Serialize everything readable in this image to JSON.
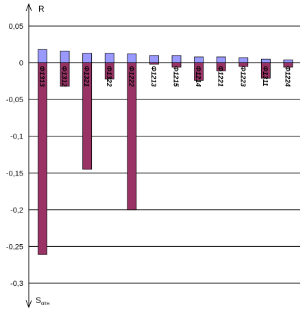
{
  "chart_data": {
    "type": "bar",
    "categories": [
      "Φ1313",
      "Φ1312",
      "Φ1321",
      "Φ1322",
      "Φ1222",
      "Φ1213",
      "Φ1215",
      "Φ1214",
      "Φ1221",
      "Φ1223",
      "Φ1311",
      "Φ1224"
    ],
    "series": [
      {
        "values": [
          0.018,
          0.016,
          0.013,
          0.013,
          0.012,
          0.01,
          0.01,
          0.008,
          0.008,
          0.007,
          0.005,
          0.004
        ],
        "color": "#9999ff"
      },
      {
        "values": [
          -0.261,
          -0.032,
          -0.145,
          -0.022,
          -0.2,
          -0.002,
          -0.006,
          -0.024,
          -0.011,
          -0.005,
          -0.021,
          -0.006
        ],
        "color": "#993366"
      }
    ],
    "ylim": [
      -0.3,
      0.05
    ],
    "yticks": [
      "0,05",
      "0",
      "-0,05",
      "-0,1",
      "-0,15",
      "-0,2",
      "-0,25",
      "-0,3"
    ],
    "ytick_values": [
      0.05,
      0,
      -0.05,
      -0.1,
      -0.15,
      -0.2,
      -0.25,
      -0.3
    ],
    "y_top_label": "R",
    "y_bottom_label": "S",
    "y_bottom_label_sub": "отн",
    "grid": true
  }
}
